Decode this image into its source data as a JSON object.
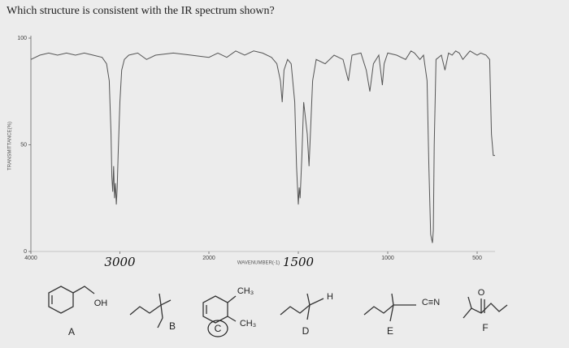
{
  "question": "Which structure is consistent with the IR spectrum shown?",
  "spectrum": {
    "type": "line",
    "xlabel": "WAVENUMBER(-1)",
    "ylabel": "TRANSMITTANCE(%)",
    "color": "#555555",
    "x": [
      4000,
      3900,
      3800,
      3700,
      3600,
      3500,
      3400,
      3300,
      3200,
      3150,
      3120,
      3100,
      3090,
      3080,
      3070,
      3060,
      3050,
      3040,
      3030,
      3020,
      3000,
      2980,
      2950,
      2900,
      2800,
      2700,
      2600,
      2400,
      2200,
      2000,
      1950,
      1900,
      1850,
      1800,
      1750,
      1700,
      1650,
      1620,
      1600,
      1590,
      1580,
      1560,
      1540,
      1520,
      1510,
      1500,
      1495,
      1490,
      1480,
      1470,
      1450,
      1440,
      1420,
      1400,
      1350,
      1300,
      1250,
      1220,
      1200,
      1150,
      1120,
      1100,
      1080,
      1050,
      1030,
      1020,
      1000,
      950,
      900,
      870,
      850,
      820,
      800,
      780,
      770,
      760,
      750,
      745,
      740,
      730,
      700,
      680,
      660,
      640,
      620,
      600,
      580,
      560,
      540,
      520,
      500,
      480,
      450,
      430,
      420,
      410,
      400
    ],
    "values": [
      90,
      92,
      93,
      92,
      93,
      92,
      93,
      92,
      91,
      88,
      80,
      55,
      35,
      28,
      40,
      25,
      32,
      22,
      30,
      45,
      70,
      85,
      90,
      92,
      93,
      90,
      92,
      93,
      92,
      91,
      93,
      91,
      94,
      92,
      94,
      93,
      91,
      88,
      80,
      70,
      85,
      90,
      88,
      70,
      40,
      22,
      30,
      25,
      45,
      70,
      55,
      40,
      80,
      90,
      88,
      92,
      90,
      80,
      92,
      93,
      85,
      75,
      88,
      92,
      78,
      88,
      93,
      92,
      90,
      94,
      93,
      90,
      92,
      80,
      40,
      8,
      4,
      10,
      50,
      90,
      92,
      85,
      93,
      92,
      94,
      93,
      90,
      92,
      94,
      93,
      92,
      93,
      92,
      90,
      55,
      45,
      45
    ],
    "xlim": [
      4000,
      400
    ],
    "scale_break": 2000,
    "ylim": [
      0,
      100
    ],
    "xticks": [
      4000,
      3000,
      2000,
      1500,
      1000,
      500
    ],
    "handwritten": [
      false,
      true,
      false,
      true,
      false,
      false
    ],
    "yticks": [
      0,
      50,
      100
    ]
  },
  "options": [
    {
      "letter": "A",
      "groups": [
        "OH"
      ]
    },
    {
      "letter": "B",
      "groups": []
    },
    {
      "letter": "C",
      "groups": [
        "CH₃",
        "CH₃"
      ]
    },
    {
      "letter": "D",
      "groups": [
        "H"
      ]
    },
    {
      "letter": "E",
      "groups": [
        "C≡N"
      ]
    },
    {
      "letter": "F",
      "groups": [
        "O"
      ]
    }
  ]
}
